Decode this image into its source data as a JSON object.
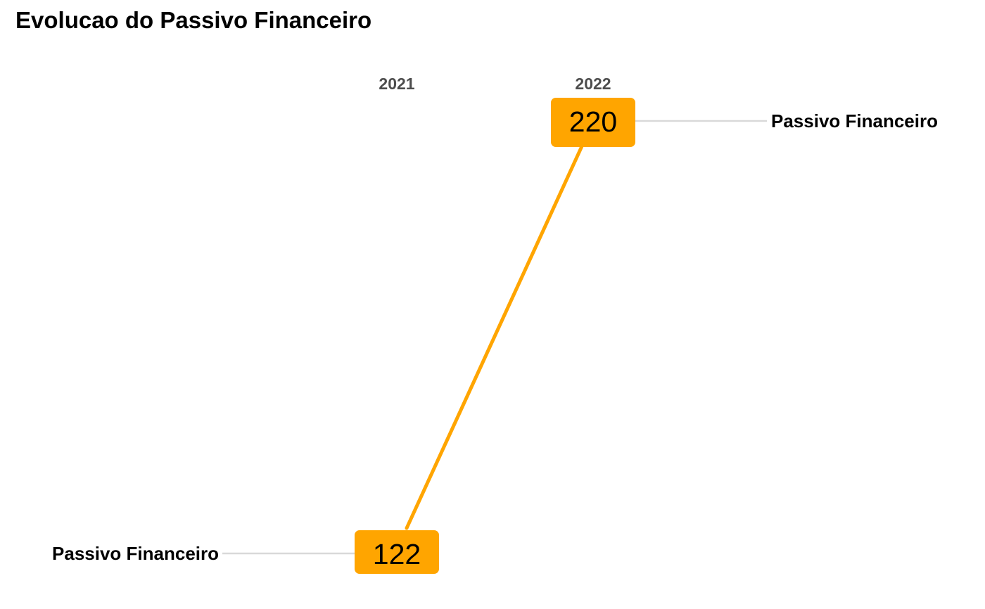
{
  "chart_data": {
    "type": "line",
    "title": "Evolucao do Passivo Financeiro",
    "xlabel": "",
    "ylabel": "",
    "categories": [
      "2021",
      "2022"
    ],
    "series": [
      {
        "name": "Passivo Financeiro",
        "values": [
          122,
          220
        ],
        "color": "#FFA500"
      }
    ],
    "left_label": "Passivo Financeiro",
    "right_label": "Passivo Financeiro",
    "grid": false,
    "legend": "none"
  },
  "colors": {
    "accent": "#FFA500",
    "connector": "#D9D9D9",
    "year_text": "#4D4D4D",
    "text": "#000000"
  }
}
